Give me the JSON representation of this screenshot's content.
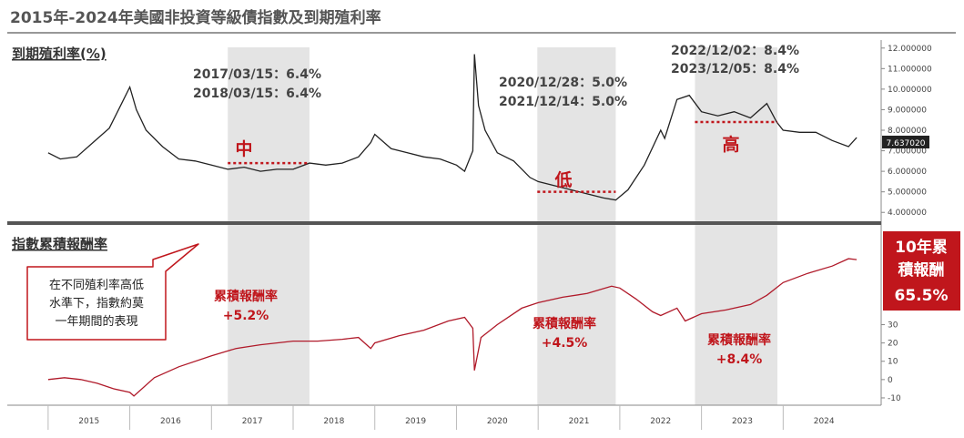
{
  "title": "2015年-2024年美國非投資等級債指數及到期殖利率",
  "chart_data": [
    {
      "type": "line",
      "panel_label": "到期殖利率(%)",
      "y_ticks": [
        "12.000000",
        "11.000000",
        "10.000000",
        "9.000000",
        "8.000000",
        "7.000000",
        "6.000000",
        "5.000000",
        "4.000000"
      ],
      "ylim": [
        3.7,
        12.3
      ],
      "last_value_label": "7.637020",
      "series": [
        {
          "x": [
            2015.0,
            2015.15,
            2015.35,
            2015.55,
            2015.75,
            2015.9,
            2016.0,
            2016.08,
            2016.2,
            2016.4,
            2016.6,
            2016.8,
            2017.0,
            2017.2,
            2017.4,
            2017.6,
            2017.8,
            2018.0,
            2018.2,
            2018.4,
            2018.6,
            2018.8,
            2018.95,
            2019.0,
            2019.2,
            2019.4,
            2019.6,
            2019.8,
            2020.0,
            2020.1,
            2020.2,
            2020.22,
            2020.27,
            2020.35,
            2020.5,
            2020.7,
            2020.9,
            2021.0,
            2021.2,
            2021.4,
            2021.6,
            2021.8,
            2021.95,
            2022.1,
            2022.3,
            2022.5,
            2022.55,
            2022.7,
            2022.85,
            2023.0,
            2023.2,
            2023.4,
            2023.6,
            2023.8,
            2023.92,
            2024.0,
            2024.2,
            2024.4,
            2024.6,
            2024.8,
            2024.9
          ],
          "y": [
            6.9,
            6.6,
            6.7,
            7.4,
            8.1,
            9.3,
            10.1,
            9.0,
            8.0,
            7.2,
            6.6,
            6.5,
            6.3,
            6.1,
            6.2,
            6.0,
            6.1,
            6.1,
            6.4,
            6.3,
            6.4,
            6.7,
            7.4,
            7.8,
            7.1,
            6.9,
            6.7,
            6.6,
            6.3,
            6.0,
            7.0,
            11.7,
            9.2,
            8.0,
            6.9,
            6.5,
            5.7,
            5.5,
            5.3,
            5.1,
            4.9,
            4.7,
            4.6,
            5.1,
            6.3,
            8.0,
            7.6,
            9.5,
            9.7,
            8.9,
            8.7,
            8.9,
            8.6,
            9.3,
            8.4,
            8.0,
            7.9,
            7.9,
            7.5,
            7.2,
            7.64
          ]
        }
      ],
      "periods": [
        {
          "ann1": "2017/03/15：6.4%",
          "ann2": "2018/03/15：6.4%",
          "level": "中",
          "yield_value": 6.4,
          "x_start": 2017.2,
          "x_end": 2018.2
        },
        {
          "ann1": "2020/12/28：5.0%",
          "ann2": "2021/12/14：5.0%",
          "level": "低",
          "yield_value": 5.0,
          "x_start": 2020.99,
          "x_end": 2021.95
        },
        {
          "ann1": "2022/12/02：8.4%",
          "ann2": "2023/12/05：8.4%",
          "level": "高",
          "yield_value": 8.4,
          "x_start": 2022.92,
          "x_end": 2023.93
        }
      ]
    },
    {
      "type": "line",
      "panel_label": "指數累積報酬率",
      "y_ticks": [
        "30",
        "20",
        "10",
        "0",
        "-10"
      ],
      "ylim": [
        -14,
        78
      ],
      "series": [
        {
          "x": [
            2015.0,
            2015.2,
            2015.4,
            2015.6,
            2015.8,
            2016.0,
            2016.05,
            2016.3,
            2016.6,
            2017.0,
            2017.3,
            2017.6,
            2018.0,
            2018.3,
            2018.6,
            2018.8,
            2018.95,
            2019.0,
            2019.3,
            2019.6,
            2019.9,
            2020.1,
            2020.2,
            2020.22,
            2020.3,
            2020.5,
            2020.8,
            2021.0,
            2021.3,
            2021.6,
            2021.9,
            2022.0,
            2022.2,
            2022.4,
            2022.5,
            2022.7,
            2022.8,
            2023.0,
            2023.3,
            2023.6,
            2023.8,
            2024.0,
            2024.3,
            2024.6,
            2024.8,
            2024.9
          ],
          "y": [
            0,
            1,
            0,
            -2,
            -5,
            -7,
            -9,
            1,
            7,
            13,
            17,
            19,
            21,
            21,
            22,
            23,
            17,
            20,
            24,
            27,
            32,
            34,
            28,
            5,
            23,
            30,
            39,
            42,
            45,
            47,
            51,
            50,
            44,
            37,
            35,
            39,
            32,
            36,
            38,
            41,
            46,
            53,
            58,
            62,
            66,
            65.5
          ]
        }
      ],
      "periods": [
        {
          "label": "累積報酬率",
          "value": "+5.2%"
        },
        {
          "label": "累積報酬率",
          "value": "+4.5%"
        },
        {
          "label": "累積報酬率",
          "value": "+8.4%"
        }
      ]
    }
  ],
  "x_axis": {
    "years": [
      "2015",
      "2016",
      "2017",
      "2018",
      "2019",
      "2020",
      "2021",
      "2022",
      "2023",
      "2024"
    ],
    "xlim": [
      2014.5,
      2025.2
    ]
  },
  "callout": {
    "lines": [
      "在不同殖利率高低",
      "水準下，指數約莫",
      "一年期間的表現"
    ]
  },
  "badge": {
    "lines": [
      "10年累",
      "積報酬",
      "65.5%"
    ]
  },
  "colors": {
    "yield_line": "#222222",
    "return_line": "#b01a2a",
    "accent": "#c0161c",
    "shade": "#e4e4e4",
    "divider": "#555555"
  }
}
